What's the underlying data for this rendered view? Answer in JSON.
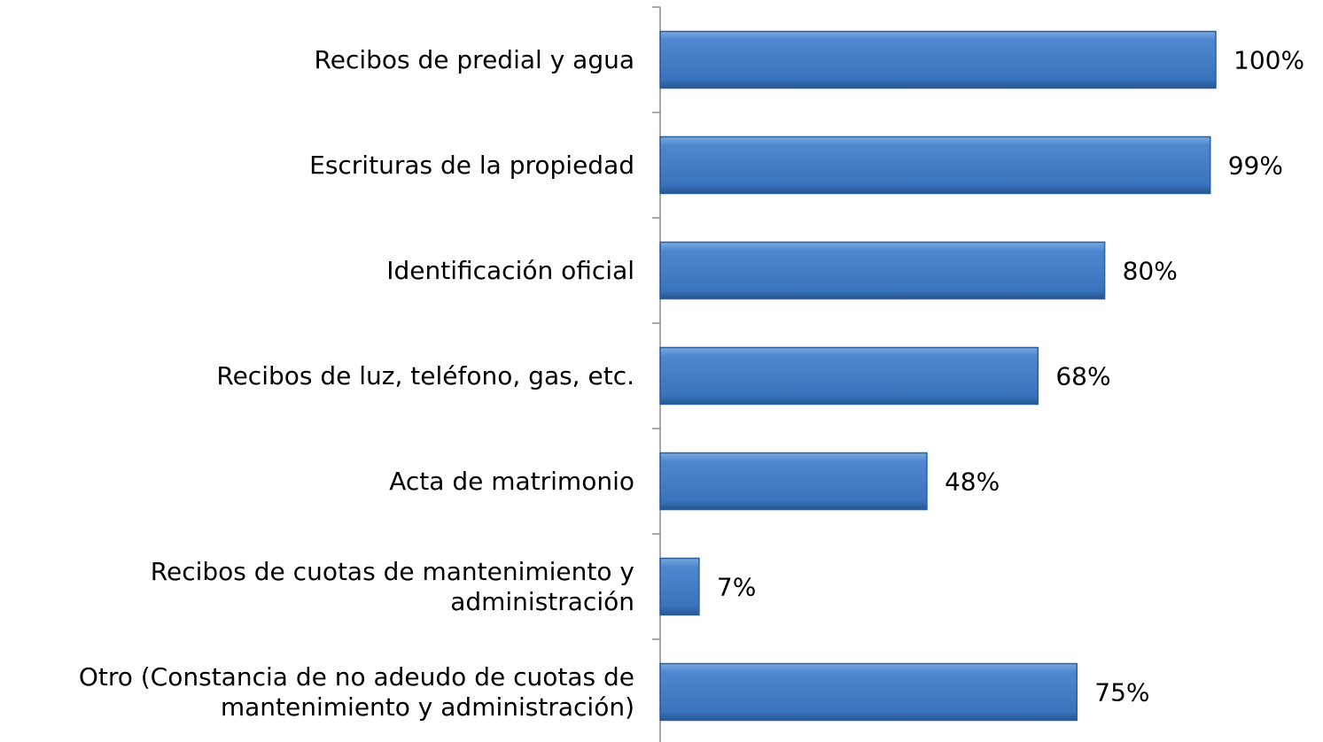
{
  "chart_data": {
    "type": "bar",
    "orientation": "horizontal",
    "categories": [
      "Recibos de predial y agua",
      "Escrituras de la propiedad",
      "Identificación oficial",
      "Recibos de luz, teléfono, gas, etc.",
      "Acta de matrimonio",
      "Recibos de cuotas de mantenimiento y administración",
      "Otro (Constancia de no adeudo de cuotas de mantenimiento y administración)"
    ],
    "values": [
      100,
      99,
      80,
      68,
      48,
      7,
      75
    ],
    "value_labels": [
      "100%",
      "99%",
      "80%",
      "68%",
      "48%",
      "7%",
      "75%"
    ],
    "color": "#4f81bd",
    "xlim": [
      0,
      100
    ]
  }
}
